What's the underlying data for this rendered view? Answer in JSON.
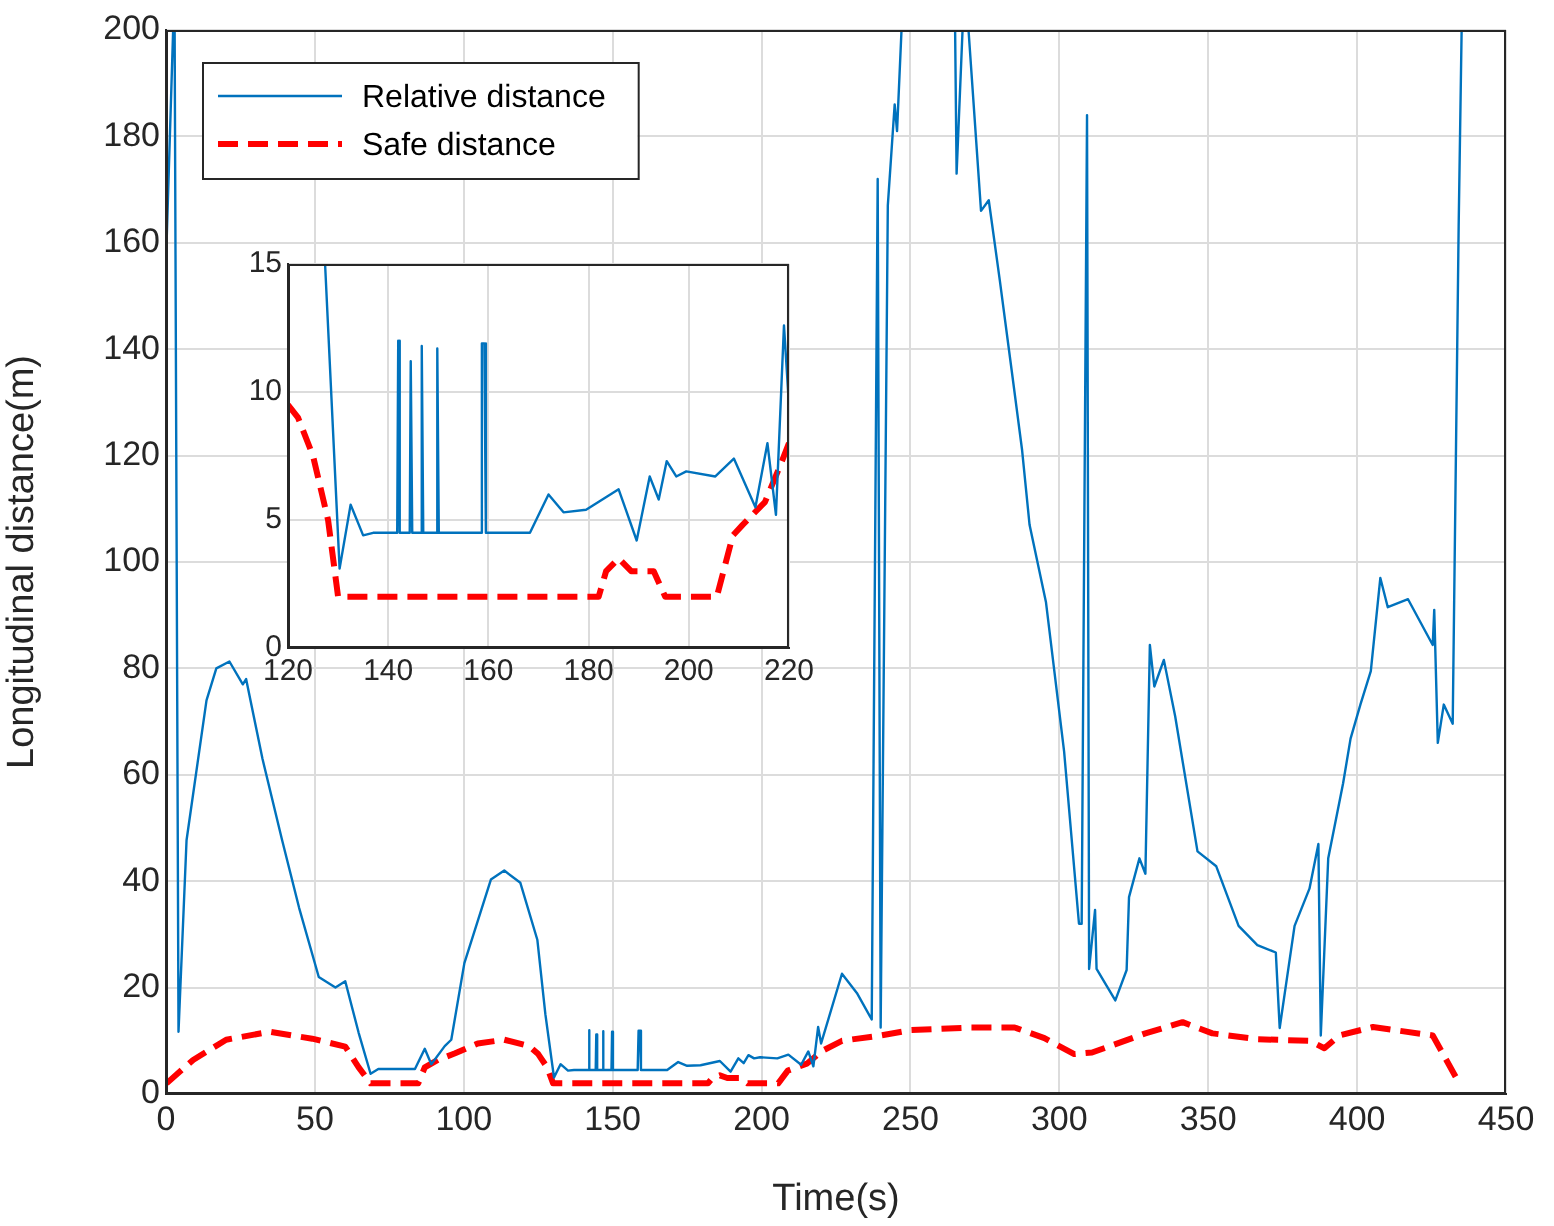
{
  "chart_data": [
    {
      "type": "line",
      "xlabel": "Time(s)",
      "ylabel": "Longitudinal distance(m)",
      "xlim": [
        0,
        450
      ],
      "xticks": [
        0,
        50,
        100,
        150,
        200,
        250,
        300,
        350,
        400,
        450
      ],
      "ylim": [
        0,
        200
      ],
      "yticks": [
        0,
        20,
        40,
        60,
        80,
        100,
        120,
        140,
        160,
        180,
        200
      ],
      "grid": true,
      "legend": "top left",
      "marker": "none",
      "series": [
        {
          "name": "Relative distance",
          "color": "#0072bd",
          "line_style": "solid",
          "x": [
            0,
            0.2,
            2.4,
            2.6,
            2.9,
            4.2,
            6.9,
            13.6,
            16.9,
            21.3,
            25.8,
            26.9,
            32.4,
            39,
            44.7,
            51.3,
            56.9,
            60.2,
            64.7,
            68.7,
            71.3,
            83.6,
            86.9,
            89.1,
            93.6,
            95.8,
            100.2,
            109.1,
            113.6,
            119,
            124.7,
            127.4,
            130.3,
            132.5,
            135,
            137,
            141.8,
            142,
            142.3,
            144.3,
            144.5,
            144.8,
            146.5,
            146.7,
            147,
            149.6,
            149.8,
            150.1,
            158.4,
            158.7,
            159.2,
            159.5,
            168.3,
            172,
            175,
            179.5,
            186,
            189.6,
            192.2,
            194,
            195.6,
            197.5,
            199.5,
            205.3,
            209,
            213.3,
            215.7,
            217.4,
            219,
            220,
            227,
            232,
            237,
            239,
            240,
            242.4,
            244.7,
            245.5,
            247,
            248,
            265,
            265.5,
            267.5,
            268.5,
            269.5,
            273.7,
            276.3,
            280,
            284,
            287.5,
            290,
            295.5,
            301.6,
            306.6,
            307.5,
            309.3,
            310,
            312,
            312.5,
            318.8,
            322.6,
            323.4,
            326.9,
            328.9,
            330.4,
            331.9,
            335.1,
            338.9,
            346.4,
            352.7,
            360.2,
            366.5,
            372.7,
            374,
            379,
            384,
            387,
            387.8,
            390.3,
            395.3,
            397.8,
            401.1,
            404.6,
            407.8,
            410.3,
            417.1,
            425.4,
            425.9,
            427.1,
            429.1,
            432.1,
            434.1,
            435.1
          ],
          "values": [
            165,
            160,
            200,
            null,
            200,
            11.7,
            47.7,
            74,
            80,
            81.3,
            77,
            78,
            63,
            47.7,
            35,
            22,
            20,
            21.2,
            11.5,
            3.8,
            4.7,
            4.7,
            8.5,
            5.6,
            9,
            10.2,
            24.6,
            40.3,
            42,
            39.7,
            29,
            15,
            3.1,
            5.6,
            4.4,
            4.5,
            4.5,
            12,
            4.5,
            4.5,
            11.2,
            4.5,
            4.5,
            11.8,
            4.5,
            4.5,
            11.7,
            4.5,
            4.5,
            11.9,
            11.9,
            4.5,
            4.5,
            6,
            5.3,
            5.4,
            6.2,
            4.2,
            6.7,
            5.8,
            7.3,
            6.7,
            6.9,
            6.7,
            7.4,
            5.5,
            8,
            5.2,
            12.6,
            9.5,
            22.6,
            19,
            14,
            172,
            12.5,
            167,
            186,
            181,
            200,
            null,
            200,
            173,
            200,
            null,
            200,
            166,
            168,
            153,
            136,
            121,
            107,
            92.5,
            64.4,
            32,
            32,
            184,
            23.5,
            34.6,
            23.5,
            17.6,
            23.3,
            37,
            44.3,
            41.4,
            84.4,
            76.6,
            81.6,
            71,
            45.6,
            42.8,
            31.6,
            28,
            26.6,
            12.4,
            31.6,
            38.6,
            47,
            11,
            44.3,
            58.4,
            66.8,
            73.2,
            79.5,
            97,
            91.5,
            93,
            84.4,
            91,
            66,
            73.2,
            69.6,
            163,
            200
          ]
        },
        {
          "name": "Safe distance",
          "color": "#ff0000",
          "line_style": "dashed",
          "x": [
            0.2,
            9.1,
            20.2,
            34.7,
            49.1,
            60.2,
            64.7,
            68.7,
            84.7,
            86.9,
            91.3,
            96.9,
            104.7,
            113.6,
            122,
            125,
            128,
            130,
            182,
            183.5,
            186,
            188.5,
            193,
            195.3,
            205.6,
            208.8,
            210.7,
            215.2,
            218.4,
            220,
            227,
            240,
            250,
            270,
            285,
            295,
            305,
            311,
            328.9,
            341.4,
            351.4,
            366.5,
            384,
            389,
            394,
            405.3,
            425.4,
            434
          ],
          "values": [
            2,
            6.4,
            10.2,
            11.7,
            10.4,
            8.9,
            5,
            2,
            2,
            5,
            6.4,
            7.6,
            9.5,
            10.2,
            9,
            7.5,
            5,
            2,
            2,
            3,
            3.5,
            3,
            3,
            2,
            2,
            4.4,
            4.8,
            5.7,
            7.2,
            8,
            10,
            11,
            12,
            12.5,
            12.5,
            10.5,
            7.5,
            7.8,
            11.4,
            13.5,
            11.4,
            10.3,
            10,
            8.6,
            11,
            12.6,
            11,
            2.3
          ]
        }
      ]
    },
    {
      "type": "line",
      "xlim": [
        120,
        220
      ],
      "xticks": [
        120,
        140,
        160,
        180,
        200,
        220
      ],
      "ylim": [
        0,
        15
      ],
      "yticks": [
        0,
        5,
        10,
        15
      ],
      "grid": true,
      "marker": "none",
      "series": [
        {
          "color": "#0072bd",
          "line_style": "solid",
          "x": [
            127.4,
            130.3,
            132.5,
            135,
            137,
            141.8,
            142,
            142.3,
            144.3,
            144.5,
            144.8,
            146.5,
            146.7,
            147,
            149.6,
            149.8,
            150.1,
            158.4,
            158.7,
            159.2,
            159.5,
            168.3,
            172,
            175,
            179.5,
            186,
            189.6,
            192.2,
            194,
            195.6,
            197.5,
            199.5,
            205.3,
            209,
            213.3,
            215.7,
            217.4,
            219,
            220
          ],
          "values": [
            15,
            3.1,
            5.6,
            4.4,
            4.5,
            4.5,
            12,
            4.5,
            4.5,
            11.2,
            4.5,
            4.5,
            11.8,
            4.5,
            4.5,
            11.7,
            4.5,
            4.5,
            11.9,
            11.9,
            4.5,
            4.5,
            6,
            5.3,
            5.4,
            6.2,
            4.2,
            6.7,
            5.8,
            7.3,
            6.7,
            6.9,
            6.7,
            7.4,
            5.5,
            8,
            5.2,
            12.6,
            9.5
          ]
        },
        {
          "color": "#ff0000",
          "line_style": "dashed",
          "x": [
            120,
            122,
            125,
            128,
            130,
            182,
            183.5,
            186,
            188.5,
            193,
            195.3,
            205.6,
            208.8,
            210.7,
            215.2,
            218.4,
            220
          ],
          "values": [
            9.5,
            9,
            7.5,
            5,
            2,
            2,
            3,
            3.5,
            3,
            3,
            2,
            2,
            4.4,
            4.8,
            5.7,
            7.2,
            8
          ]
        }
      ]
    }
  ]
}
